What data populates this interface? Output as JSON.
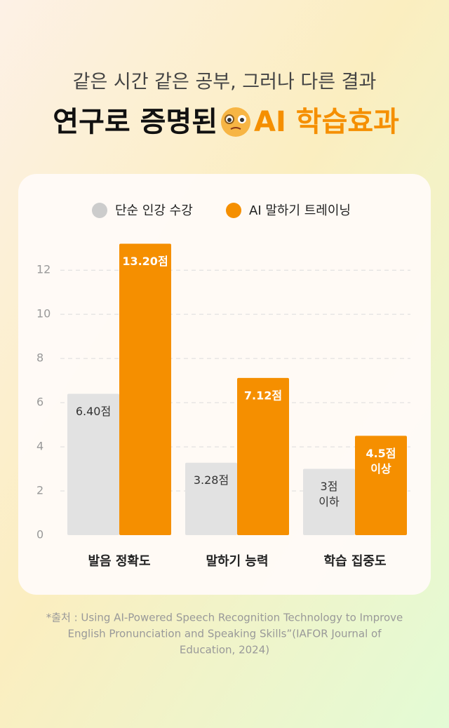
{
  "chart_data": {
    "type": "bar",
    "subtitle": "같은 시간 같은 공부, 그러나 다른 결과",
    "title": "연구로 증명된",
    "title_highlight": "AI 학습효과",
    "categories": [
      "발음 정확도",
      "말하기 능력",
      "학습 집중도"
    ],
    "series": [
      {
        "name": "단순 인강 수강",
        "color": "#e2e2e2",
        "values": [
          6.4,
          3.28,
          3
        ],
        "value_labels": [
          [
            "6.40점"
          ],
          [
            "3.28점"
          ],
          [
            "3점",
            "이하"
          ]
        ]
      },
      {
        "name": "AI 말하기 트레이닝",
        "color": "#f58f00",
        "values": [
          13.2,
          7.12,
          4.5
        ],
        "value_labels": [
          [
            "13.20점"
          ],
          [
            "7.12점"
          ],
          [
            "4.5점",
            "이상"
          ]
        ]
      }
    ],
    "ylim": [
      0,
      13.5
    ],
    "yticks": [
      0,
      2,
      4,
      6,
      8,
      10,
      12
    ],
    "grid": true,
    "source": [
      "*출처 : Using AI-Powered Speech Recognition Technology to Improve",
      "English Pronunciation and Speaking Skills”(IAFOR Journal of",
      "Education, 2024)"
    ]
  }
}
